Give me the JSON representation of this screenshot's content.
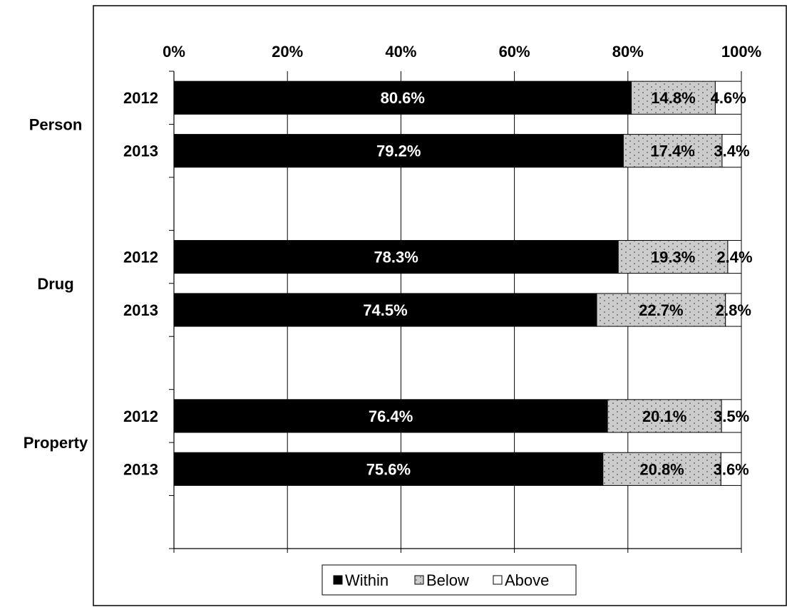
{
  "chart_data": {
    "type": "bar",
    "orientation": "horizontal",
    "stacked": "percent",
    "xlim": [
      0,
      100
    ],
    "x_ticks": [
      "0%",
      "20%",
      "40%",
      "60%",
      "80%",
      "100%"
    ],
    "grid": "vertical",
    "legend_position": "bottom",
    "series": [
      {
        "name": "Within",
        "color": "#000000",
        "pattern": "solid"
      },
      {
        "name": "Below",
        "color": "#c8c8c8",
        "pattern": "dotted"
      },
      {
        "name": "Above",
        "color": "#ffffff",
        "pattern": "none"
      }
    ],
    "groups": [
      {
        "name": "Person",
        "rows": [
          {
            "year": "2012",
            "values": [
              80.6,
              14.8,
              4.6
            ],
            "labels": [
              "80.6%",
              "14.8%",
              "4.6%"
            ]
          },
          {
            "year": "2013",
            "values": [
              79.2,
              17.4,
              3.4
            ],
            "labels": [
              "79.2%",
              "17.4%",
              "3.4%"
            ]
          }
        ]
      },
      {
        "name": "Drug",
        "rows": [
          {
            "year": "2012",
            "values": [
              78.3,
              19.3,
              2.4
            ],
            "labels": [
              "78.3%",
              "19.3%",
              "2.4%"
            ]
          },
          {
            "year": "2013",
            "values": [
              74.5,
              22.7,
              2.8
            ],
            "labels": [
              "74.5%",
              "22.7%",
              "2.8%"
            ]
          }
        ]
      },
      {
        "name": "Property",
        "rows": [
          {
            "year": "2012",
            "values": [
              76.4,
              20.1,
              3.5
            ],
            "labels": [
              "76.4%",
              "20.1%",
              "3.5%"
            ]
          },
          {
            "year": "2013",
            "values": [
              75.6,
              20.8,
              3.6
            ],
            "labels": [
              "75.6%",
              "20.8%",
              "3.6%"
            ]
          }
        ]
      }
    ]
  }
}
